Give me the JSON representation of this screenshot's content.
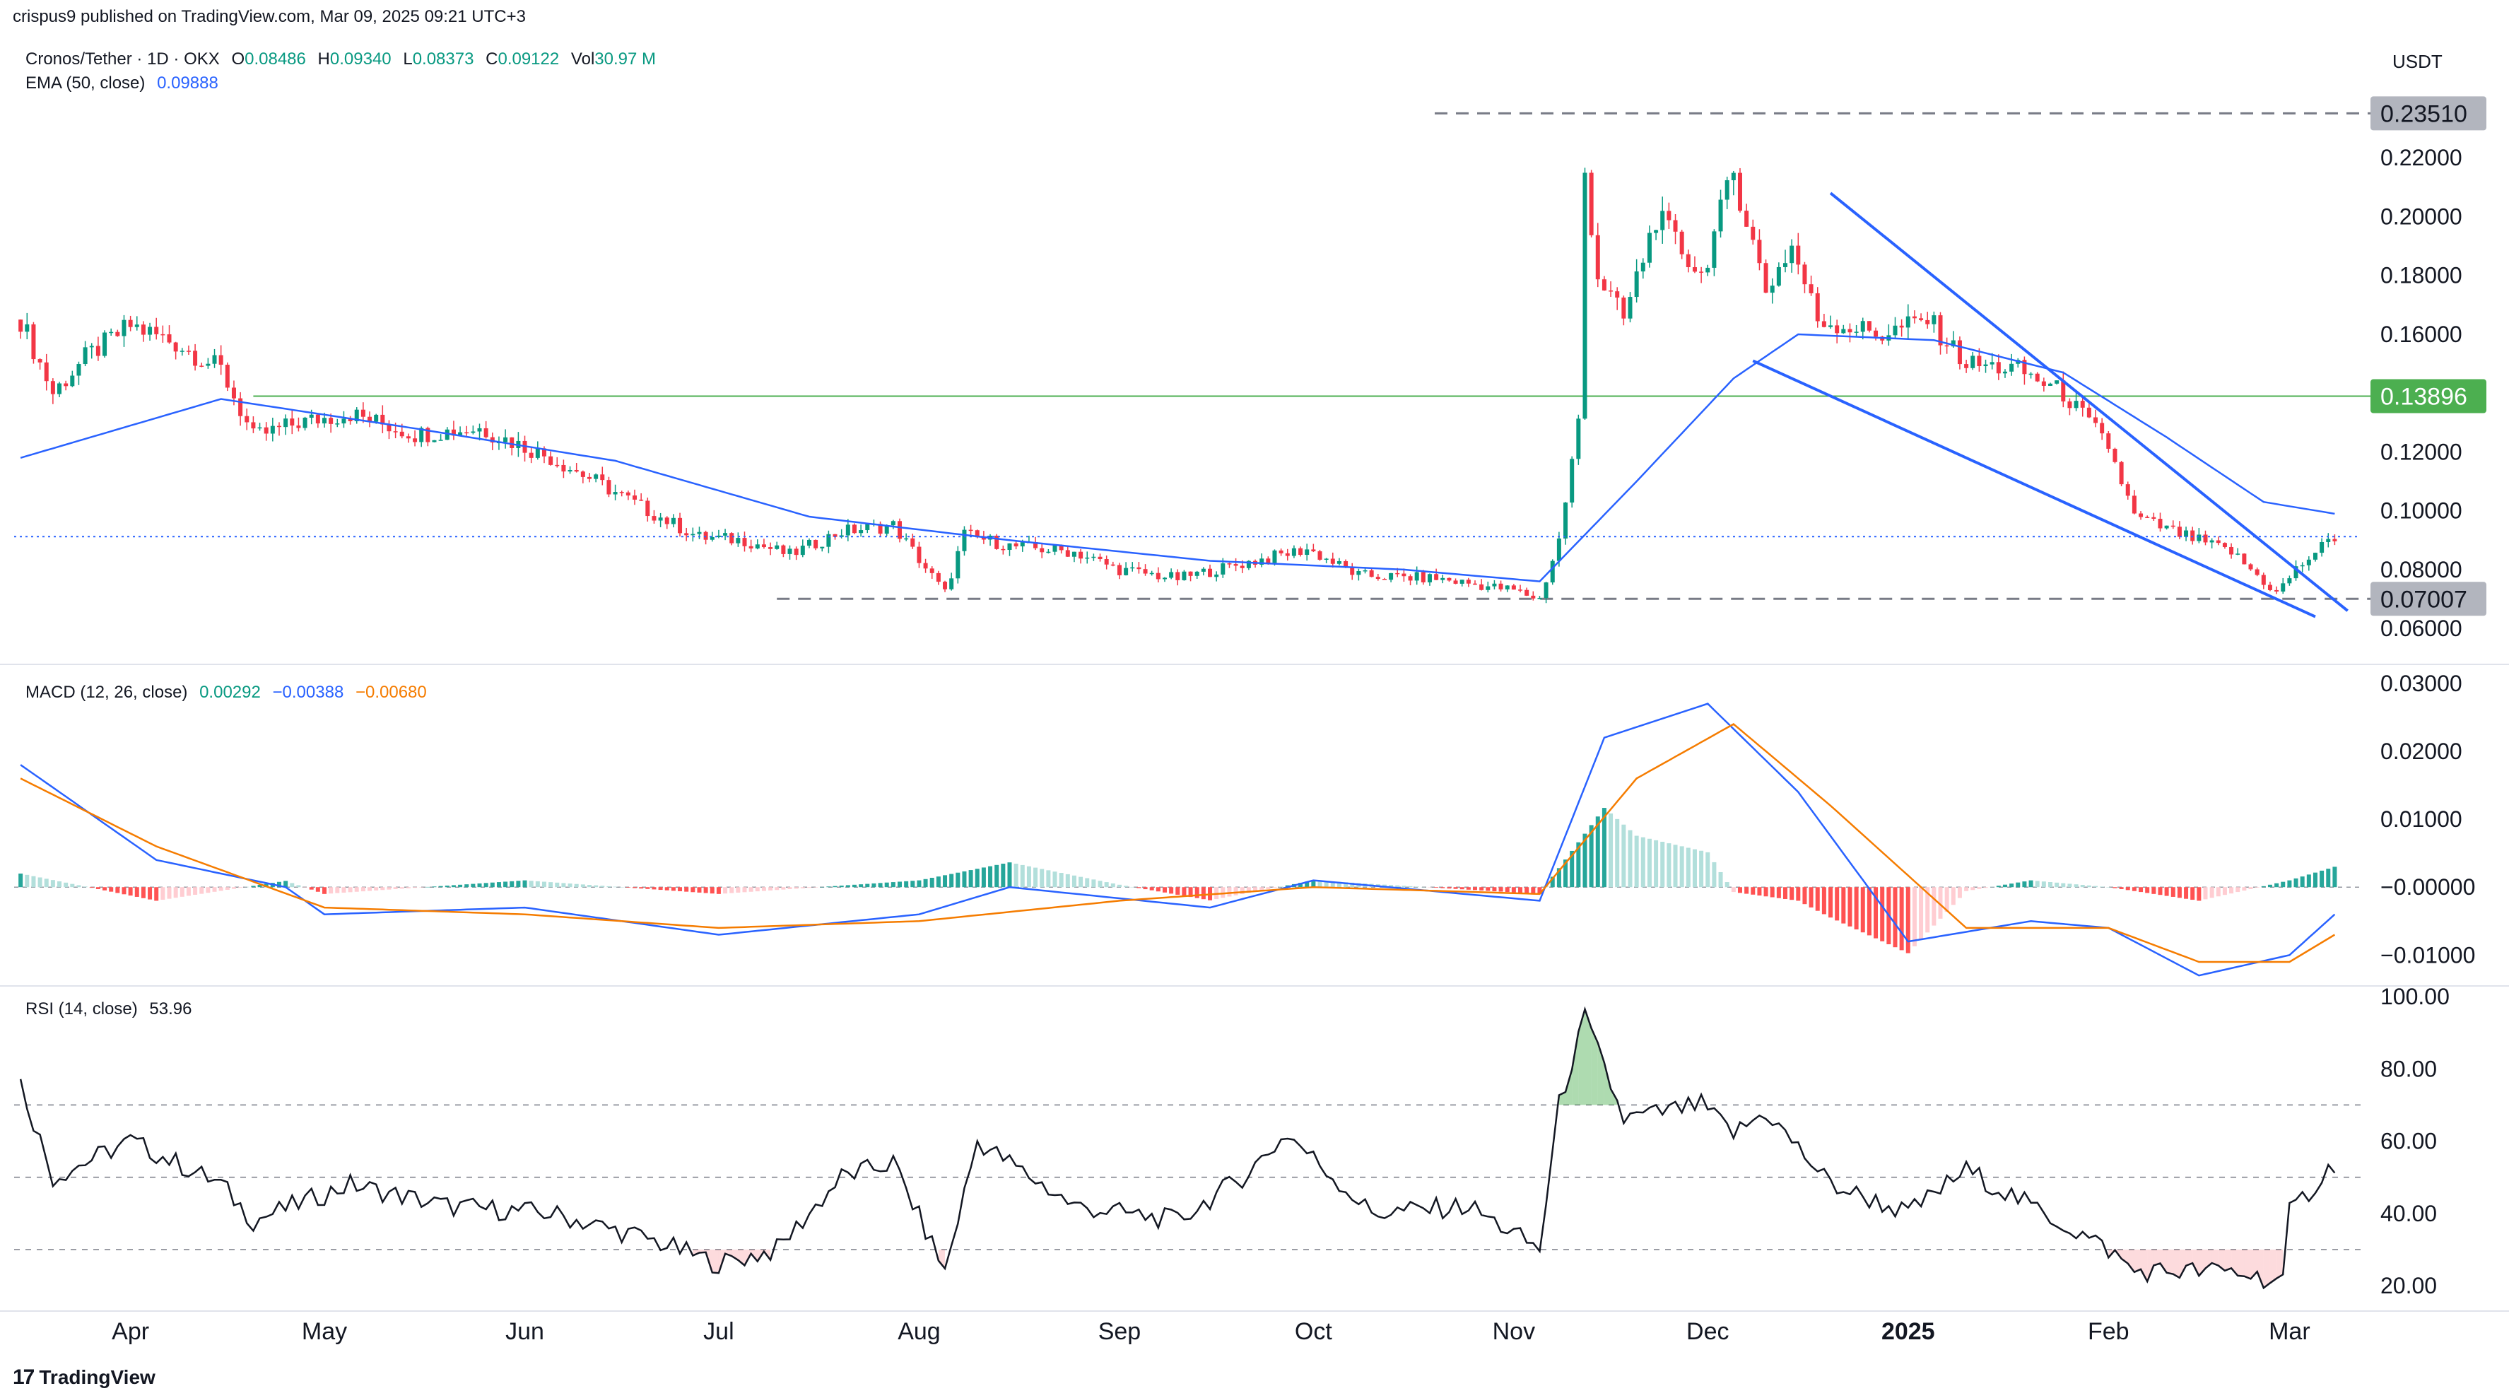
{
  "publisher": "crispus9 published on TradingView.com, Mar 09, 2025 09:21 UTC+3",
  "currency": "USDT",
  "symbol_line": {
    "symbol": "Cronos/Tether · 1D · OKX",
    "o_label": "O",
    "o": "0.08486",
    "h_label": "H",
    "h": "0.09340",
    "l_label": "L",
    "l": "0.08373",
    "c_label": "C",
    "c": "0.09122",
    "vol_label": "Vol",
    "vol": "30.97 M"
  },
  "ema_line": {
    "label": "EMA (50, close)",
    "value": "0.09888"
  },
  "macd_line": {
    "label": "MACD (12, 26, close)",
    "hist": "0.00292",
    "macd": "−0.00388",
    "signal": "−0.00680"
  },
  "rsi_line": {
    "label": "RSI (14, close)",
    "value": "53.96"
  },
  "logo_text": "TradingView",
  "colors": {
    "up": "#089981",
    "down": "#f23645",
    "ema": "#2962ff",
    "macd": "#2962ff",
    "signal": "#f57c00",
    "rsi": "#131722",
    "support": "#4caf50",
    "wedge": "#2962ff"
  },
  "chart_data": [
    {
      "type": "candlestick",
      "title": "Cronos/Tether · 1D · OKX",
      "y_unit": "USDT",
      "ylim": [
        0.055,
        0.24
      ],
      "y_ticks": [
        "0.06000",
        "0.08000",
        "0.10000",
        "0.12000",
        "0.14000",
        "0.16000",
        "0.18000",
        "0.20000",
        "0.22000"
      ],
      "x_labels": [
        "Apr",
        "May",
        "Jun",
        "Jul",
        "Aug",
        "Sep",
        "Oct",
        "Nov",
        "Dec",
        "2025",
        "Feb",
        "Mar"
      ],
      "price_labels": [
        {
          "value": "0.23510",
          "style": "gray"
        },
        {
          "value": "0.13896",
          "style": "green"
        },
        {
          "value": "0.07007",
          "style": "gray"
        }
      ],
      "horizontal_levels": [
        0.2351,
        0.13896,
        0.07007
      ],
      "last_close": 0.09122,
      "close_anchors": [
        [
          "2024-03-15",
          0.165
        ],
        [
          "2024-03-20",
          0.14
        ],
        [
          "2024-03-25",
          0.152
        ],
        [
          "2024-04-01",
          0.163
        ],
        [
          "2024-04-08",
          0.157
        ],
        [
          "2024-04-15",
          0.148
        ],
        [
          "2024-04-20",
          0.125
        ],
        [
          "2024-04-27",
          0.13
        ],
        [
          "2024-05-05",
          0.133
        ],
        [
          "2024-05-15",
          0.126
        ],
        [
          "2024-05-25",
          0.128
        ],
        [
          "2024-06-05",
          0.118
        ],
        [
          "2024-06-12",
          0.11
        ],
        [
          "2024-06-20",
          0.1
        ],
        [
          "2024-06-28",
          0.091
        ],
        [
          "2024-07-05",
          0.09
        ],
        [
          "2024-07-12",
          0.085
        ],
        [
          "2024-07-20",
          0.093
        ],
        [
          "2024-07-28",
          0.095
        ],
        [
          "2024-08-05",
          0.072
        ],
        [
          "2024-08-08",
          0.092
        ],
        [
          "2024-08-15",
          0.088
        ],
        [
          "2024-08-25",
          0.086
        ],
        [
          "2024-09-01",
          0.08
        ],
        [
          "2024-09-10",
          0.077
        ],
        [
          "2024-09-20",
          0.082
        ],
        [
          "2024-09-30",
          0.087
        ],
        [
          "2024-10-08",
          0.078
        ],
        [
          "2024-10-20",
          0.077
        ],
        [
          "2024-11-01",
          0.073
        ],
        [
          "2024-11-05",
          0.07
        ],
        [
          "2024-11-08",
          0.09
        ],
        [
          "2024-11-11",
          0.13
        ],
        [
          "2024-11-12",
          0.215
        ],
        [
          "2024-11-14",
          0.18
        ],
        [
          "2024-11-18",
          0.165
        ],
        [
          "2024-11-23",
          0.2
        ],
        [
          "2024-11-30",
          0.18
        ],
        [
          "2024-12-05",
          0.215
        ],
        [
          "2024-12-10",
          0.175
        ],
        [
          "2024-12-14",
          0.19
        ],
        [
          "2024-12-18",
          0.165
        ],
        [
          "2024-12-22",
          0.163
        ],
        [
          "2024-12-28",
          0.16
        ],
        [
          "2025-01-04",
          0.165
        ],
        [
          "2025-01-10",
          0.15
        ],
        [
          "2025-01-18",
          0.148
        ],
        [
          "2025-01-25",
          0.14
        ],
        [
          "2025-02-01",
          0.122
        ],
        [
          "2025-02-05",
          0.098
        ],
        [
          "2025-02-12",
          0.092
        ],
        [
          "2025-02-20",
          0.086
        ],
        [
          "2025-02-27",
          0.072
        ],
        [
          "2025-03-02",
          0.08
        ],
        [
          "2025-03-05",
          0.086
        ],
        [
          "2025-03-08",
          0.091
        ]
      ],
      "ema50_anchors": [
        [
          "2024-03-15",
          0.118
        ],
        [
          "2024-04-15",
          0.138
        ],
        [
          "2024-05-15",
          0.128
        ],
        [
          "2024-06-15",
          0.117
        ],
        [
          "2024-07-15",
          0.098
        ],
        [
          "2024-08-15",
          0.09
        ],
        [
          "2024-09-15",
          0.083
        ],
        [
          "2024-10-15",
          0.08
        ],
        [
          "2024-11-05",
          0.076
        ],
        [
          "2024-11-20",
          0.11
        ],
        [
          "2024-12-05",
          0.145
        ],
        [
          "2024-12-15",
          0.16
        ],
        [
          "2025-01-05",
          0.158
        ],
        [
          "2025-01-25",
          0.147
        ],
        [
          "2025-02-10",
          0.125
        ],
        [
          "2025-02-25",
          0.103
        ],
        [
          "2025-03-08",
          0.099
        ]
      ]
    },
    {
      "type": "line",
      "title": "MACD (12, 26, close)",
      "ylim": [
        -0.0135,
        0.0305
      ],
      "y_ticks": [
        "0.03000",
        "0.02000",
        "0.01000",
        "−0.00000",
        "−0.01000"
      ],
      "series": [
        {
          "name": "MACD",
          "anchors": [
            [
              "2024-03-15",
              0.018
            ],
            [
              "2024-04-05",
              0.004
            ],
            [
              "2024-04-25",
              0.0
            ],
            [
              "2024-05-01",
              -0.004
            ],
            [
              "2024-06-01",
              -0.003
            ],
            [
              "2024-07-01",
              -0.007
            ],
            [
              "2024-08-01",
              -0.004
            ],
            [
              "2024-08-15",
              0.0
            ],
            [
              "2024-09-15",
              -0.003
            ],
            [
              "2024-10-01",
              0.001
            ],
            [
              "2024-11-05",
              -0.002
            ],
            [
              "2024-11-15",
              0.022
            ],
            [
              "2024-12-01",
              0.027
            ],
            [
              "2024-12-15",
              0.014
            ],
            [
              "2025-01-01",
              -0.008
            ],
            [
              "2025-01-20",
              -0.005
            ],
            [
              "2025-02-01",
              -0.006
            ],
            [
              "2025-02-15",
              -0.013
            ],
            [
              "2025-03-01",
              -0.01
            ],
            [
              "2025-03-08",
              -0.004
            ]
          ]
        },
        {
          "name": "Signal",
          "anchors": [
            [
              "2024-03-15",
              0.016
            ],
            [
              "2024-04-05",
              0.006
            ],
            [
              "2024-05-01",
              -0.003
            ],
            [
              "2024-06-01",
              -0.004
            ],
            [
              "2024-07-01",
              -0.006
            ],
            [
              "2024-08-01",
              -0.005
            ],
            [
              "2024-09-01",
              -0.002
            ],
            [
              "2024-10-01",
              0.0
            ],
            [
              "2024-11-05",
              -0.001
            ],
            [
              "2024-11-20",
              0.016
            ],
            [
              "2024-12-05",
              0.024
            ],
            [
              "2024-12-20",
              0.012
            ],
            [
              "2025-01-10",
              -0.006
            ],
            [
              "2025-02-01",
              -0.006
            ],
            [
              "2025-02-15",
              -0.011
            ],
            [
              "2025-03-01",
              -0.011
            ],
            [
              "2025-03-08",
              -0.007
            ]
          ]
        }
      ]
    },
    {
      "type": "line",
      "title": "RSI (14, close)",
      "ylim": [
        12,
        100
      ],
      "y_ticks": [
        "100.00",
        "80.00",
        "60.00",
        "40.00",
        "20.00"
      ],
      "bands": [
        30,
        50,
        70
      ],
      "series": [
        {
          "name": "RSI",
          "anchors": [
            [
              "2024-03-15",
              76
            ],
            [
              "2024-03-20",
              50
            ],
            [
              "2024-04-01",
              60
            ],
            [
              "2024-04-15",
              48
            ],
            [
              "2024-04-20",
              38
            ],
            [
              "2024-05-05",
              48
            ],
            [
              "2024-05-20",
              42
            ],
            [
              "2024-06-05",
              40
            ],
            [
              "2024-06-20",
              33
            ],
            [
              "2024-07-01",
              26
            ],
            [
              "2024-07-10",
              30
            ],
            [
              "2024-07-20",
              50
            ],
            [
              "2024-07-28",
              54
            ],
            [
              "2024-08-05",
              24
            ],
            [
              "2024-08-10",
              60
            ],
            [
              "2024-08-25",
              42
            ],
            [
              "2024-09-10",
              38
            ],
            [
              "2024-09-20",
              50
            ],
            [
              "2024-09-27",
              62
            ],
            [
              "2024-10-10",
              40
            ],
            [
              "2024-10-25",
              42
            ],
            [
              "2024-11-05",
              30
            ],
            [
              "2024-11-08",
              70
            ],
            [
              "2024-11-12",
              94
            ],
            [
              "2024-11-18",
              66
            ],
            [
              "2024-11-30",
              70
            ],
            [
              "2024-12-05",
              62
            ],
            [
              "2024-12-10",
              68
            ],
            [
              "2024-12-20",
              48
            ],
            [
              "2025-01-01",
              40
            ],
            [
              "2025-01-10",
              52
            ],
            [
              "2025-01-20",
              42
            ],
            [
              "2025-02-01",
              30
            ],
            [
              "2025-02-05",
              24
            ],
            [
              "2025-02-20",
              24
            ],
            [
              "2025-02-28",
              21
            ],
            [
              "2025-03-01",
              40
            ],
            [
              "2025-03-08",
              54
            ]
          ]
        }
      ]
    }
  ]
}
